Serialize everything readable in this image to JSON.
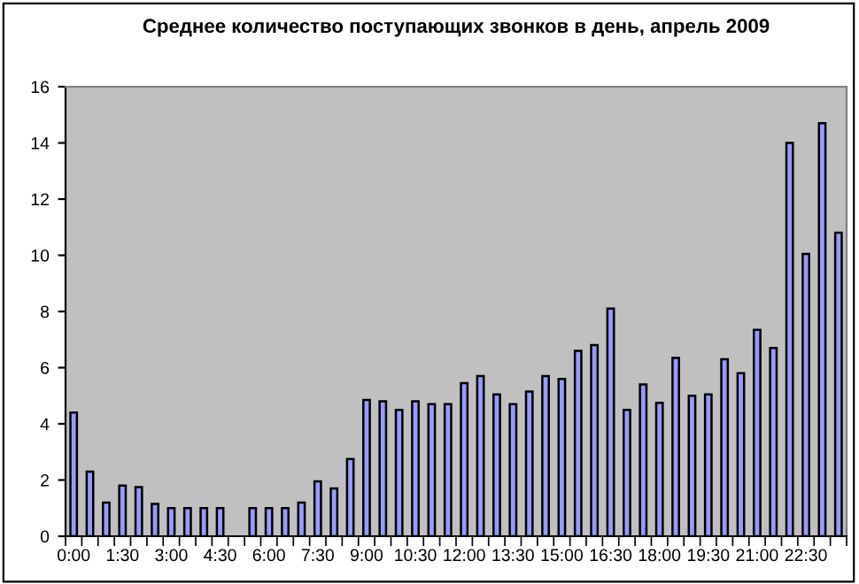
{
  "chart_data": {
    "type": "bar",
    "title": "Среднее количество поступающих звонков в день, апрель 2009",
    "categories": [
      "0:00",
      null,
      null,
      "1:30",
      null,
      null,
      "3:00",
      null,
      null,
      "4:30",
      null,
      null,
      "6:00",
      null,
      null,
      "7:30",
      null,
      null,
      "9:00",
      null,
      null,
      "10:30",
      null,
      null,
      "12:00",
      null,
      null,
      "13:30",
      null,
      null,
      "15:00",
      null,
      null,
      "16:30",
      null,
      null,
      "18:00",
      null,
      null,
      "19:30",
      null,
      null,
      "21:00",
      null,
      null,
      "22:30",
      null,
      null
    ],
    "values": [
      4.4,
      2.3,
      1.2,
      1.8,
      1.75,
      1.15,
      1.0,
      1.0,
      1.0,
      1.0,
      null,
      1.0,
      1.0,
      1.0,
      1.2,
      1.95,
      1.7,
      2.75,
      4.85,
      4.8,
      4.5,
      4.8,
      4.7,
      4.7,
      5.45,
      5.7,
      5.05,
      4.7,
      5.15,
      5.7,
      5.6,
      6.6,
      6.8,
      8.1,
      4.5,
      5.4,
      4.75,
      6.35,
      5.0,
      5.05,
      6.3,
      5.8,
      7.35,
      6.7,
      14.0,
      10.05,
      14.7,
      10.8
    ],
    "color": "#9999ff",
    "ylim": [
      0,
      16
    ],
    "yticks": [
      0,
      2,
      4,
      6,
      8,
      10,
      12,
      14,
      16
    ],
    "grid": false
  }
}
